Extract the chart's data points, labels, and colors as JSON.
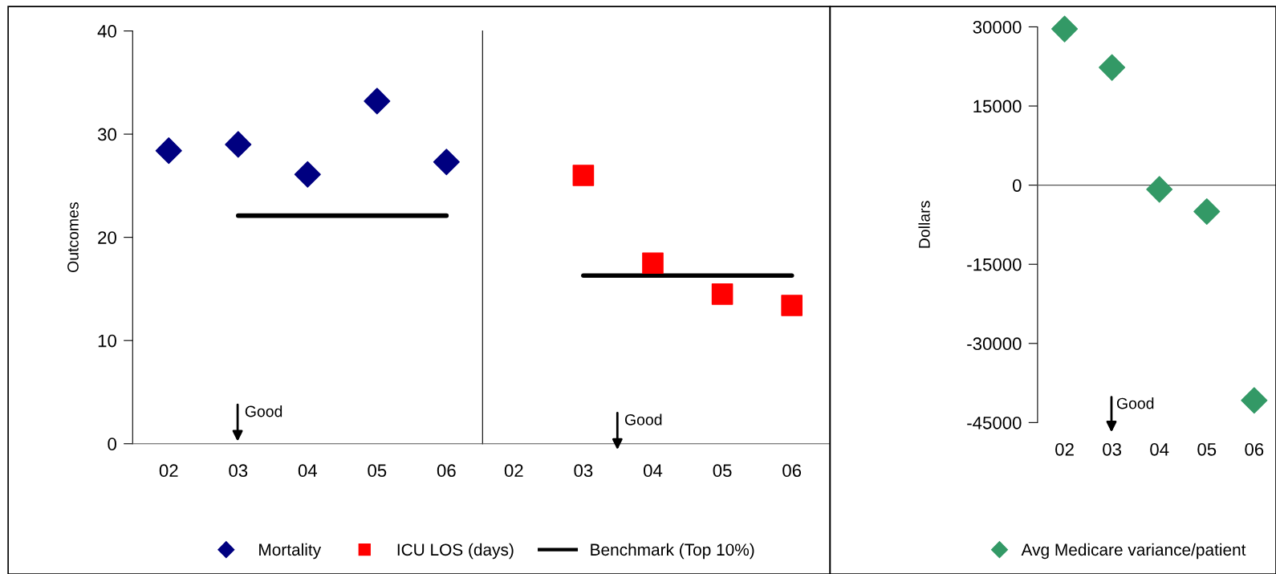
{
  "chart_data": [
    {
      "type": "scatter",
      "ylabel": "Outcomes",
      "categories": [
        "02",
        "03",
        "04",
        "05",
        "06"
      ],
      "ylim": [
        0,
        40
      ],
      "yticks": [
        0,
        10,
        20,
        30,
        40
      ],
      "legend": "bottom",
      "annotations": [
        "Good"
      ],
      "series": [
        {
          "name": "Mortality",
          "color": "#000080",
          "marker": "diamond",
          "values": [
            28.4,
            29.0,
            26.1,
            33.2,
            27.3
          ]
        },
        {
          "name": "Benchmark (Top 10%)",
          "type": "line",
          "color": "#000000",
          "values": [
            null,
            22.1,
            22.1,
            22.1,
            22.1
          ]
        }
      ]
    },
    {
      "type": "scatter",
      "categories": [
        "02",
        "03",
        "04",
        "05",
        "06"
      ],
      "ylim": [
        0,
        40
      ],
      "tick_labels": "x",
      "legend": "bottom",
      "annotations": [
        "Good"
      ],
      "series": [
        {
          "name": "ICU LOS (days)",
          "color": "#ff0000",
          "marker": "square",
          "values": [
            null,
            26.0,
            17.5,
            14.5,
            13.4
          ]
        },
        {
          "type": "line",
          "color": "#000000",
          "values": [
            null,
            16.3,
            16.3,
            16.3,
            16.3
          ]
        }
      ]
    },
    {
      "type": "scatter",
      "ylabel": "Dollars",
      "categories": [
        "02",
        "03",
        "04",
        "05",
        "06"
      ],
      "ylim": [
        -45000,
        30000
      ],
      "yticks": [
        -45000,
        -30000,
        -15000,
        0,
        15000,
        30000
      ],
      "legend": "bottom",
      "annotations": [
        "Good"
      ],
      "series": [
        {
          "name": "Avg Medicare variance/patient",
          "color": "#339966",
          "marker": "diamond",
          "values": [
            29600,
            22300,
            -800,
            -5000,
            -40800
          ]
        }
      ]
    }
  ]
}
